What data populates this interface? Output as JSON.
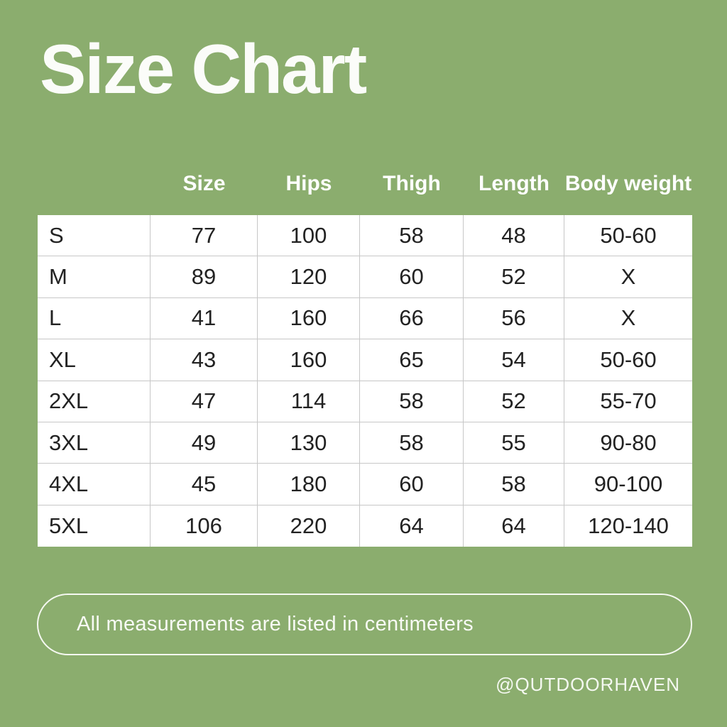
{
  "colors": {
    "background_green": "#8BAD6E",
    "table_background": "#FFFFFF",
    "table_border": "#C7C7C7",
    "table_text": "#222222",
    "light_text": "#F8FAF5"
  },
  "title": "Size Chart",
  "table": {
    "column_headers": [
      "Size",
      "Hips",
      "Thigh",
      "Length",
      "Body weight"
    ],
    "rows": [
      {
        "label": "S",
        "values": [
          "77",
          "100",
          "58",
          "48",
          "50-60"
        ]
      },
      {
        "label": "M",
        "values": [
          "89",
          "120",
          "60",
          "52",
          "X"
        ]
      },
      {
        "label": "L",
        "values": [
          "41",
          "160",
          "66",
          "56",
          "X"
        ]
      },
      {
        "label": "XL",
        "values": [
          "43",
          "160",
          "65",
          "54",
          "50-60"
        ]
      },
      {
        "label": "2XL",
        "values": [
          "47",
          "114",
          "58",
          "52",
          "55-70"
        ]
      },
      {
        "label": "3XL",
        "values": [
          "49",
          "130",
          "58",
          "55",
          "90-80"
        ]
      },
      {
        "label": "4XL",
        "values": [
          "45",
          "180",
          "60",
          "58",
          "90-100"
        ]
      },
      {
        "label": "5XL",
        "values": [
          "106",
          "220",
          "64",
          "64",
          "120-140"
        ]
      }
    ]
  },
  "note": "All measurements are listed in centimeters",
  "handle": "@QUTDOORHAVEN",
  "chart_data": {
    "type": "table",
    "title": "Size Chart",
    "columns": [
      "Size",
      "Hips",
      "Thigh",
      "Length",
      "Body weight"
    ],
    "row_labels": [
      "S",
      "M",
      "L",
      "XL",
      "2XL",
      "3XL",
      "4XL",
      "5XL"
    ],
    "rows": [
      [
        "77",
        "100",
        "58",
        "48",
        "50-60"
      ],
      [
        "89",
        "120",
        "60",
        "52",
        "X"
      ],
      [
        "41",
        "160",
        "66",
        "56",
        "X"
      ],
      [
        "43",
        "160",
        "65",
        "54",
        "50-60"
      ],
      [
        "47",
        "114",
        "58",
        "52",
        "55-70"
      ],
      [
        "49",
        "130",
        "58",
        "55",
        "90-80"
      ],
      [
        "45",
        "180",
        "60",
        "58",
        "90-100"
      ],
      [
        "106",
        "220",
        "64",
        "64",
        "120-140"
      ]
    ],
    "note": "All measurements are listed in centimeters",
    "units": "centimeters"
  }
}
